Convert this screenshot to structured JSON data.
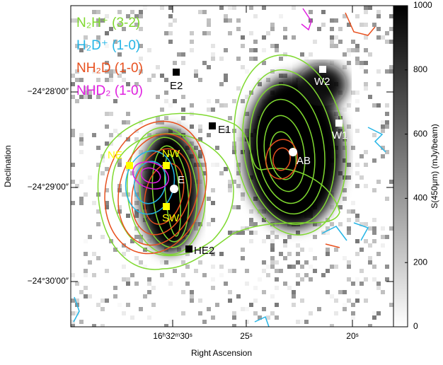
{
  "chart_data": {
    "type": "image",
    "xlabel": "Right Ascension",
    "ylabel": "Declination",
    "xtick_labels": [
      "16ʰ32ᵐ30ˢ",
      "25ˢ",
      "20ˢ"
    ],
    "ytick_labels": [
      "−24°28′00″",
      "−24°29′00″",
      "−24°30′00″"
    ],
    "legend": [
      {
        "name": "N₂H⁺ (3-2)",
        "color": "#7fd92f"
      },
      {
        "name": "H₂D⁺ (1-0)",
        "color": "#25b5e6"
      },
      {
        "name": "NH₂D (1-0)",
        "color": "#e8501e"
      },
      {
        "name": "NHD₂ (1-0)",
        "color": "#e020e0"
      }
    ],
    "sources": [
      "E2",
      "W2",
      "W1",
      "E1",
      "AB",
      "NE",
      "NW",
      "E",
      "SW",
      "HE2"
    ],
    "colorbar": {
      "label": "S(450μm) (mJy/beam)",
      "lim": [
        0,
        1000
      ],
      "ticks": [
        0,
        200,
        400,
        600,
        800,
        1000
      ]
    }
  }
}
